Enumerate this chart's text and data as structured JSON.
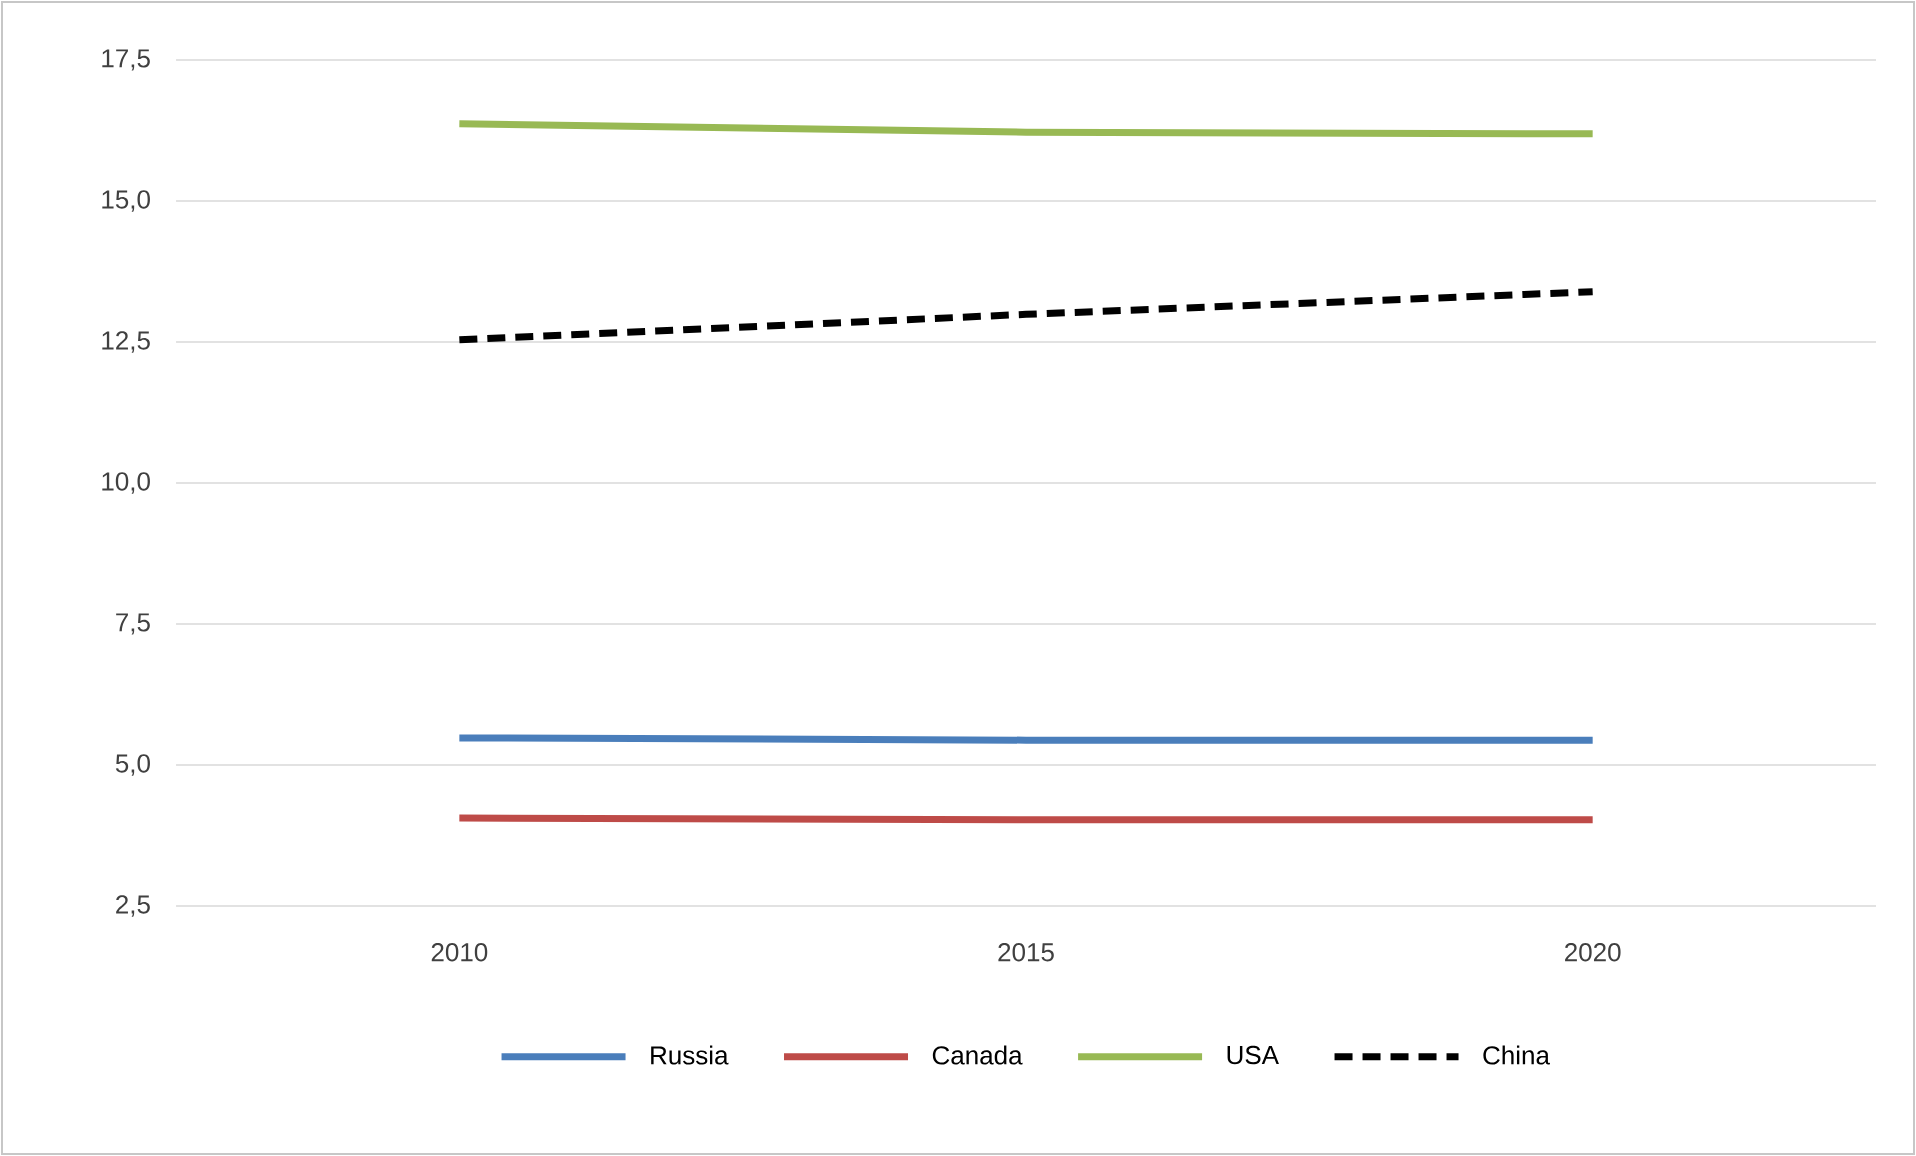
{
  "chart_data": {
    "type": "line",
    "categories": [
      "2010",
      "2015",
      "2020"
    ],
    "series": [
      {
        "name": "Russia",
        "color": "#4a7ebb",
        "values": [
          5.48,
          5.44,
          5.44
        ]
      },
      {
        "name": "Canada",
        "color": "#be4b48",
        "values": [
          4.06,
          4.03,
          4.03
        ]
      },
      {
        "name": "USA",
        "color": "#98b954",
        "values": [
          16.37,
          16.22,
          16.19
        ]
      },
      {
        "name": "China",
        "color": "#000000",
        "values": [
          12.54,
          12.99,
          13.39
        ],
        "line_style": "dashed"
      }
    ],
    "ylim": [
      2.5,
      17.5
    ],
    "yticks": [
      {
        "value": 2.5,
        "label": "2,5"
      },
      {
        "value": 5.0,
        "label": "5,0"
      },
      {
        "value": 7.5,
        "label": "7,5"
      },
      {
        "value": 10.0,
        "label": "10,0"
      },
      {
        "value": 12.5,
        "label": "12,5"
      },
      {
        "value": 15.0,
        "label": "15,0"
      },
      {
        "value": 17.5,
        "label": "17,5"
      }
    ],
    "grid": "y",
    "legend": "bottom",
    "marker": "none"
  }
}
